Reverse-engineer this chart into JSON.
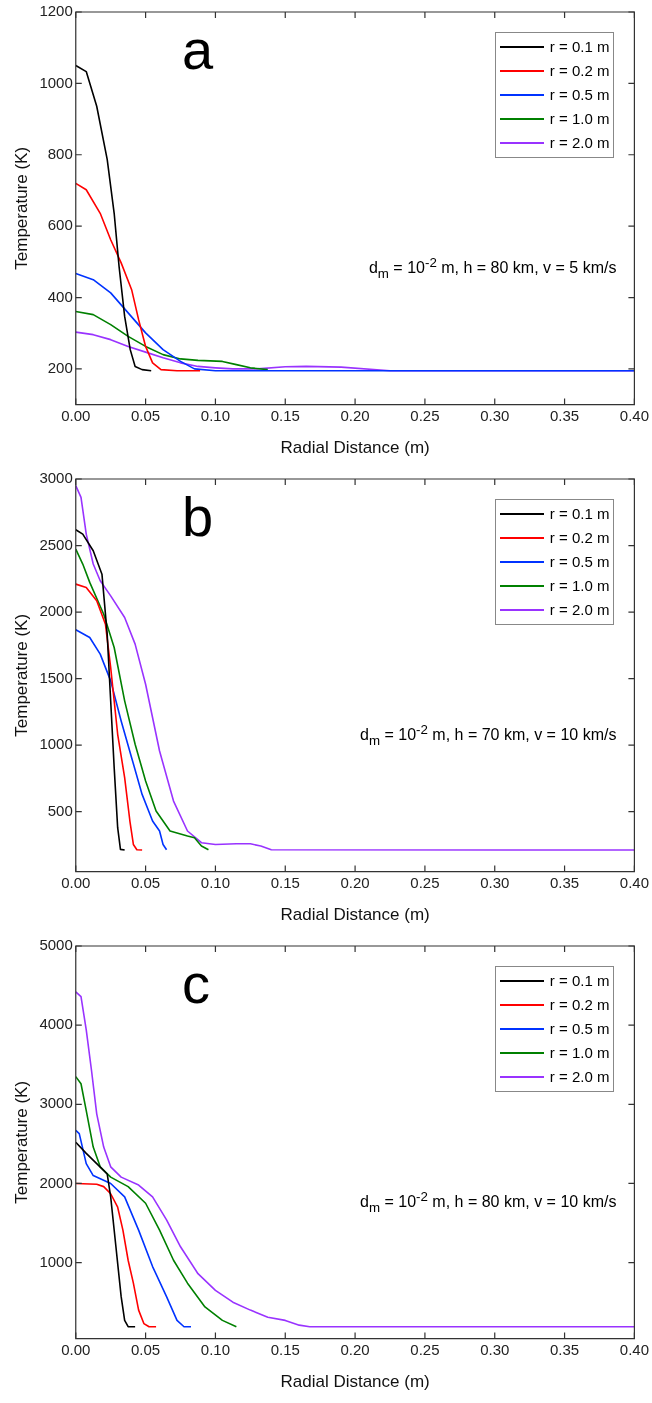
{
  "chart_data": [
    {
      "type": "line",
      "xlabel": "Radial Distance (m)",
      "ylabel": "Temperature (K)",
      "legend": "top right",
      "xlim": [
        0,
        0.4
      ],
      "ylim": [
        100,
        1200
      ],
      "xticks": [
        {
          "value": 0,
          "label": "0.00"
        },
        {
          "value": 0.05,
          "label": "0.05"
        },
        {
          "value": 0.1,
          "label": "0.10"
        },
        {
          "value": 0.15,
          "label": "0.15"
        },
        {
          "value": 0.2,
          "label": "0.20"
        },
        {
          "value": 0.25,
          "label": "0.25"
        },
        {
          "value": 0.3,
          "label": "0.30"
        },
        {
          "value": 0.35,
          "label": "0.35"
        },
        {
          "value": 0.4,
          "label": "0.40"
        }
      ],
      "yticks": [
        200,
        400,
        600,
        800,
        1000,
        1200
      ],
      "annotations": [
        "a",
        "d$_{m}$ = 10$^{-2}$ m, h = 80 km, v = 5 km/s"
      ],
      "series": [
        {
          "name": "r = 0.1 m",
          "color": "#000000",
          "x": [
            0,
            0.0075,
            0.015,
            0.0225,
            0.0275,
            0.031,
            0.035,
            0.039,
            0.0425,
            0.0475,
            0.054
          ],
          "values": [
            1050,
            1033,
            936,
            787,
            636,
            487,
            347,
            254,
            207,
            198,
            195
          ]
        },
        {
          "name": "r = 0.2 m",
          "color": "#ff0000",
          "x": [
            0,
            0.0075,
            0.0175,
            0.025,
            0.0325,
            0.04,
            0.045,
            0.05,
            0.055,
            0.061,
            0.0725,
            0.089
          ],
          "values": [
            720,
            702,
            636,
            562,
            497,
            422,
            338,
            263,
            217,
            198,
            195,
            195
          ]
        },
        {
          "name": "r = 0.5 m",
          "color": "#0033ff",
          "x": [
            0,
            0.0125,
            0.025,
            0.0375,
            0.05,
            0.0625,
            0.075,
            0.085,
            0.1,
            0.4
          ],
          "values": [
            467,
            450,
            413,
            357,
            301,
            254,
            221,
            200,
            195,
            195
          ]
        },
        {
          "name": "r = 1.0 m",
          "color": "#008000",
          "x": [
            0,
            0.0125,
            0.025,
            0.0375,
            0.05,
            0.0625,
            0.075,
            0.0875,
            0.105,
            0.115,
            0.125,
            0.1375
          ],
          "values": [
            361,
            352,
            324,
            291,
            263,
            240,
            228,
            224,
            221,
            212,
            203,
            198
          ]
        },
        {
          "name": "r = 2.0 m",
          "color": "#9933ff",
          "x": [
            0,
            0.0125,
            0.025,
            0.0375,
            0.05,
            0.0625,
            0.075,
            0.0875,
            0.1,
            0.1125,
            0.13,
            0.15,
            0.165,
            0.19,
            0.225,
            0.4
          ],
          "values": [
            303,
            296,
            282,
            263,
            247,
            231,
            217,
            207,
            203,
            200,
            200,
            206,
            207,
            205,
            195,
            195
          ]
        }
      ]
    },
    {
      "type": "line",
      "xlabel": "Radial Distance (m)",
      "ylabel": "Temperature (K)",
      "legend": "top right",
      "xlim": [
        0,
        0.4
      ],
      "ylim": [
        50,
        3000
      ],
      "xticks": [
        {
          "value": 0,
          "label": "0.00"
        },
        {
          "value": 0.05,
          "label": "0.05"
        },
        {
          "value": 0.1,
          "label": "0.10"
        },
        {
          "value": 0.15,
          "label": "0.15"
        },
        {
          "value": 0.2,
          "label": "0.20"
        },
        {
          "value": 0.25,
          "label": "0.25"
        },
        {
          "value": 0.3,
          "label": "0.30"
        },
        {
          "value": 0.35,
          "label": "0.35"
        },
        {
          "value": 0.4,
          "label": "0.40"
        }
      ],
      "yticks": [
        500,
        1000,
        1500,
        2000,
        2500,
        3000
      ],
      "annotations": [
        "b",
        "d$_{m}$ = 10$^{-2}$ m, h = 70 km, v = 10 km/s"
      ],
      "series": [
        {
          "name": "r = 0.1 m",
          "color": "#000000",
          "x": [
            0,
            0.005,
            0.0125,
            0.01875,
            0.0225,
            0.025,
            0.0275,
            0.03,
            0.032,
            0.035
          ],
          "values": [
            2619,
            2586,
            2461,
            2285,
            1834,
            1332,
            831,
            380,
            217,
            212
          ]
        },
        {
          "name": "r = 0.2 m",
          "color": "#ff0000",
          "x": [
            0,
            0.0075,
            0.015,
            0.02125,
            0.025,
            0.03,
            0.035,
            0.03875,
            0.04125,
            0.04375,
            0.0475
          ],
          "values": [
            2210,
            2185,
            2085,
            1909,
            1583,
            1082,
            756,
            430,
            254,
            214,
            212
          ]
        },
        {
          "name": "r = 0.5 m",
          "color": "#0033ff",
          "x": [
            0,
            0.01,
            0.0175,
            0.025,
            0.0325,
            0.04,
            0.0475,
            0.055,
            0.06,
            0.0625,
            0.065
          ],
          "values": [
            1867,
            1809,
            1684,
            1483,
            1182,
            906,
            630,
            430,
            355,
            254,
            214
          ]
        },
        {
          "name": "r = 1.0 m",
          "color": "#008000",
          "x": [
            0,
            0.005,
            0.01,
            0.02,
            0.0275,
            0.035,
            0.0425,
            0.05,
            0.0575,
            0.0675,
            0.08,
            0.085,
            0.09,
            0.095
          ],
          "values": [
            2473,
            2361,
            2223,
            1984,
            1734,
            1333,
            1007,
            731,
            505,
            355,
            317,
            304,
            242,
            214
          ]
        },
        {
          "name": "r = 2.0 m",
          "color": "#9933ff",
          "x": [
            0,
            0.00375,
            0.0075,
            0.0125,
            0.0175,
            0.025,
            0.035,
            0.0425,
            0.05,
            0.06,
            0.07,
            0.08,
            0.09,
            0.1,
            0.115,
            0.125,
            0.1325,
            0.14,
            0.4
          ],
          "values": [
            2950,
            2862,
            2586,
            2361,
            2235,
            2122,
            1959,
            1759,
            1458,
            956,
            580,
            355,
            267,
            254,
            259,
            259,
            242,
            214,
            212
          ]
        }
      ]
    },
    {
      "type": "line",
      "xlabel": "Radial Distance (m)",
      "ylabel": "Temperature (K)",
      "legend": "top right",
      "xlim": [
        0,
        0.4
      ],
      "ylim": [
        40,
        5000
      ],
      "xticks": [
        {
          "value": 0,
          "label": "0.00"
        },
        {
          "value": 0.05,
          "label": "0.05"
        },
        {
          "value": 0.1,
          "label": "0.10"
        },
        {
          "value": 0.15,
          "label": "0.15"
        },
        {
          "value": 0.2,
          "label": "0.20"
        },
        {
          "value": 0.25,
          "label": "0.25"
        },
        {
          "value": 0.3,
          "label": "0.30"
        },
        {
          "value": 0.35,
          "label": "0.35"
        },
        {
          "value": 0.4,
          "label": "0.40"
        }
      ],
      "yticks": [
        1000,
        2000,
        3000,
        4000,
        5000
      ],
      "annotations": [
        "c",
        "d$_{m}$ = 10$^{-2}$ m, h = 80 km, v = 10 km/s"
      ],
      "series": [
        {
          "name": "r = 0.1 m",
          "color": "#000000",
          "x": [
            0,
            0.0075,
            0.015,
            0.0225,
            0.025,
            0.02875,
            0.0325,
            0.035,
            0.0375,
            0.0425
          ],
          "values": [
            2520,
            2380,
            2250,
            2120,
            1830,
            1200,
            570,
            270,
            190,
            190
          ]
        },
        {
          "name": "r = 0.2 m",
          "color": "#ff0000",
          "x": [
            0,
            0.015,
            0.02,
            0.025,
            0.03,
            0.03375,
            0.0375,
            0.04125,
            0.045,
            0.04875,
            0.0525,
            0.0575
          ],
          "values": [
            2000,
            1990,
            1960,
            1870,
            1700,
            1410,
            1030,
            740,
            400,
            230,
            190,
            190
          ]
        },
        {
          "name": "r = 0.5 m",
          "color": "#0033ff",
          "x": [
            0,
            0.0025,
            0.0075,
            0.0125,
            0.025,
            0.035,
            0.045,
            0.055,
            0.065,
            0.0725,
            0.0775,
            0.0825
          ],
          "values": [
            2670,
            2630,
            2250,
            2100,
            2000,
            1830,
            1410,
            950,
            570,
            270,
            190,
            190
          ]
        },
        {
          "name": "r = 1.0 m",
          "color": "#008000",
          "x": [
            0,
            0.00375,
            0.0075,
            0.0125,
            0.0175,
            0.025,
            0.0375,
            0.05,
            0.06,
            0.07,
            0.08,
            0.0925,
            0.105,
            0.115
          ],
          "values": [
            3350,
            3260,
            2920,
            2460,
            2210,
            2080,
            1960,
            1750,
            1410,
            1030,
            740,
            440,
            270,
            190
          ]
        },
        {
          "name": "r = 2.0 m",
          "color": "#9933ff",
          "x": [
            0,
            0.00375,
            0.0075,
            0.01125,
            0.015,
            0.02,
            0.025,
            0.0325,
            0.045,
            0.055,
            0.065,
            0.075,
            0.0875,
            0.1,
            0.1125,
            0.125,
            0.1375,
            0.15,
            0.16,
            0.1675,
            0.4
          ],
          "values": [
            4420,
            4360,
            3940,
            3430,
            2880,
            2460,
            2210,
            2080,
            1980,
            1830,
            1540,
            1200,
            860,
            650,
            500,
            400,
            310,
            270,
            210,
            190,
            190
          ]
        }
      ]
    }
  ]
}
